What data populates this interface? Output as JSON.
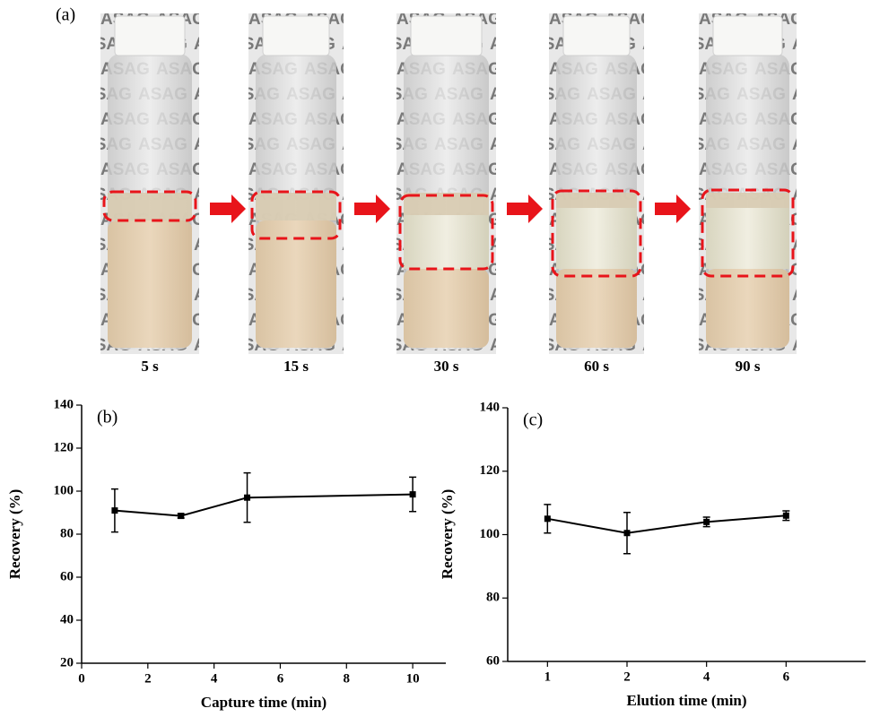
{
  "photos": {
    "label": "(a)",
    "backdrop_text": "ASAG",
    "captions": [
      "5 s",
      "15 s",
      "30 s",
      "60 s",
      "90 s"
    ]
  },
  "chart_data": [
    {
      "type": "line",
      "label": "(b)",
      "x": [
        1,
        3,
        5,
        10
      ],
      "values": [
        91,
        88.5,
        97,
        98.5
      ],
      "errors": [
        10,
        1,
        11.5,
        8
      ],
      "xlabel": "Capture time (min)",
      "ylabel": "Recovery (%)",
      "xlim": [
        0,
        11
      ],
      "xticks": [
        0,
        2,
        4,
        6,
        8,
        10
      ],
      "ylim": [
        20,
        140
      ],
      "yticks": [
        20,
        40,
        60,
        80,
        100,
        120,
        140
      ],
      "color": "#000000"
    },
    {
      "type": "line",
      "label": "(c)",
      "categories": [
        "1",
        "2",
        "4",
        "6"
      ],
      "values": [
        105,
        100.5,
        104,
        106
      ],
      "errors": [
        4.5,
        6.5,
        1.5,
        1.5
      ],
      "xlabel": "Elution time (min)",
      "ylabel": "Recovery (%)",
      "ylim": [
        60,
        140
      ],
      "yticks": [
        60,
        80,
        100,
        120,
        140
      ],
      "color": "#000000"
    }
  ]
}
